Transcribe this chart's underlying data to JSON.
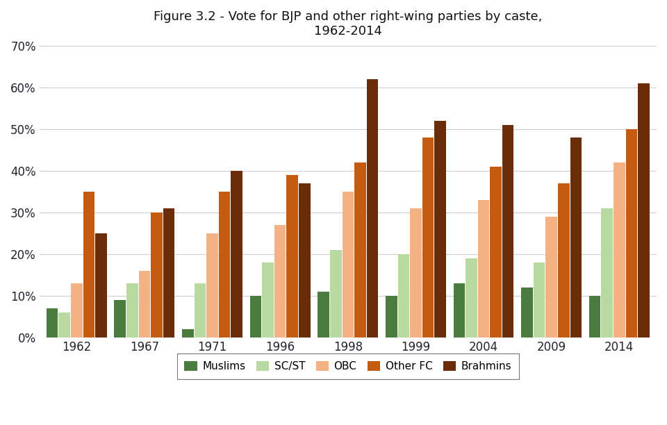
{
  "title": "Figure 3.2 - Vote for BJP and other right-wing parties by caste,\n1962-2014",
  "years": [
    "1962",
    "1967",
    "1971",
    "1996",
    "1998",
    "1999",
    "2004",
    "2009",
    "2014"
  ],
  "series": {
    "Muslims": [
      7,
      9,
      2,
      10,
      11,
      10,
      13,
      12,
      10
    ],
    "SC/ST": [
      6,
      13,
      13,
      18,
      21,
      20,
      19,
      18,
      31
    ],
    "OBC": [
      13,
      16,
      25,
      27,
      35,
      31,
      33,
      29,
      42
    ],
    "Other FC": [
      35,
      30,
      35,
      39,
      42,
      48,
      41,
      37,
      50
    ],
    "Brahmins": [
      25,
      31,
      40,
      37,
      62,
      52,
      51,
      48,
      61
    ]
  },
  "colors": {
    "Muslims": "#4a7c3f",
    "SC/ST": "#b8d9a0",
    "OBC": "#f4b183",
    "Other FC": "#c55a11",
    "Brahmins": "#6b2c0a"
  },
  "ylim": [
    0,
    70
  ],
  "yticks": [
    0,
    10,
    20,
    30,
    40,
    50,
    60,
    70
  ],
  "background_color": "#ffffff",
  "grid_color": "#cccccc",
  "legend_order": [
    "Muslims",
    "SC/ST",
    "OBC",
    "Other FC",
    "Brahmins"
  ]
}
